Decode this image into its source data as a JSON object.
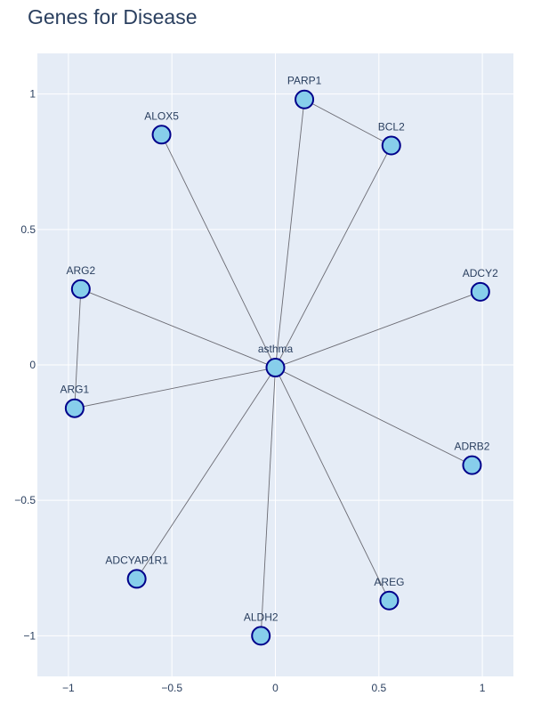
{
  "title": "Genes for Disease",
  "colors": {
    "plot_bg": "#e5ecf6",
    "grid": "#ffffff",
    "edge": "#6b6b73",
    "node_fill": "#87ceeb",
    "node_stroke": "#00008b",
    "text": "#2a3f5f"
  },
  "chart_data": {
    "type": "scatter",
    "xlim": [
      -1.15,
      1.15
    ],
    "ylim": [
      -1.15,
      1.15
    ],
    "xticks": [
      -1,
      -0.5,
      0,
      0.5,
      1
    ],
    "xtick_labels": [
      "−1",
      "−0.5",
      "0",
      "0.5",
      "1"
    ],
    "yticks": [
      1,
      0.5,
      0,
      -0.5,
      -1
    ],
    "ytick_labels": [
      "1",
      "0.5",
      "0",
      "−0.5",
      "−1"
    ],
    "grid": true,
    "nodes": [
      {
        "label": "asthma",
        "x": 0.0,
        "y": -0.01
      },
      {
        "label": "PARP1",
        "x": 0.14,
        "y": 0.98
      },
      {
        "label": "BCL2",
        "x": 0.56,
        "y": 0.81
      },
      {
        "label": "ALOX5",
        "x": -0.55,
        "y": 0.85
      },
      {
        "label": "ADCY2",
        "x": 0.99,
        "y": 0.27
      },
      {
        "label": "ARG2",
        "x": -0.94,
        "y": 0.28
      },
      {
        "label": "ARG1",
        "x": -0.97,
        "y": -0.16
      },
      {
        "label": "ADRB2",
        "x": 0.95,
        "y": -0.37
      },
      {
        "label": "ADCYAP1R1",
        "x": -0.67,
        "y": -0.79
      },
      {
        "label": "AREG",
        "x": 0.55,
        "y": -0.87
      },
      {
        "label": "ALDH2",
        "x": -0.07,
        "y": -1.0
      }
    ],
    "edges": [
      [
        "asthma",
        "PARP1"
      ],
      [
        "asthma",
        "BCL2"
      ],
      [
        "asthma",
        "ALOX5"
      ],
      [
        "asthma",
        "ADCY2"
      ],
      [
        "asthma",
        "ARG2"
      ],
      [
        "asthma",
        "ARG1"
      ],
      [
        "asthma",
        "ADRB2"
      ],
      [
        "asthma",
        "ADCYAP1R1"
      ],
      [
        "asthma",
        "AREG"
      ],
      [
        "asthma",
        "ALDH2"
      ],
      [
        "PARP1",
        "BCL2"
      ],
      [
        "ARG2",
        "ARG1"
      ]
    ]
  }
}
